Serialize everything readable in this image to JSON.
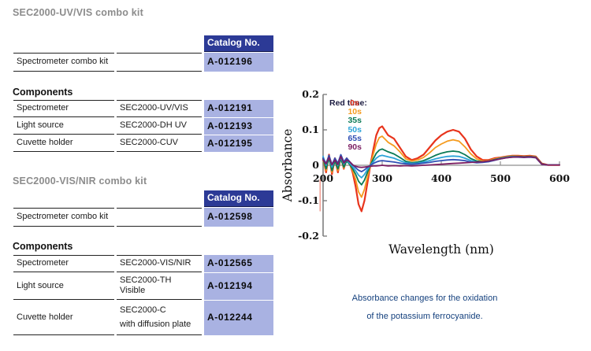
{
  "kits": [
    {
      "title": "SEC2000-UV/VIS combo kit",
      "catalog_header": "Catalog No.",
      "combo_row": {
        "label": "Spectrometer combo kit",
        "catalog": "A-012196"
      },
      "components_heading": "Components",
      "components": [
        {
          "label": "Spectrometer",
          "model": "SEC2000-UV/VIS",
          "catalog": "A-012191"
        },
        {
          "label": "Light source",
          "model": "SEC2000-DH UV",
          "catalog": "A-012193"
        },
        {
          "label": "Cuvette holder",
          "model": "SEC2000-CUV",
          "catalog": "A-012195"
        }
      ]
    },
    {
      "title": "SEC2000-VIS/NIR combo kit",
      "catalog_header": "Catalog No.",
      "combo_row": {
        "label": "Spectrometer combo kit",
        "catalog": "A-012598"
      },
      "components_heading": "Components",
      "components": [
        {
          "label": "Spectrometer",
          "model": "SEC2000-VIS/NIR",
          "catalog": "A-012565"
        },
        {
          "label": "Light source",
          "model": "SEC2000-TH Visible",
          "catalog": "A-012194"
        },
        {
          "label": "Cuvette holder",
          "model": "SEC2000-C",
          "model_line2": "with diffusion plate",
          "catalog": "A-012244"
        }
      ]
    }
  ],
  "caption": {
    "line1": "Absorbance changes for the oxidation",
    "line2": "of the potassium ferrocyanide."
  },
  "colors": {
    "catalog_header_bg": "#2c3a96",
    "catalog_header_text": "#ffffff",
    "catalog_cell_bg": "#a9b2e2",
    "kit_title_text": "#8c8c8c",
    "caption_text": "#15417e",
    "axis_gray": "#777777",
    "zero_line_gray": "#8f8f8f"
  },
  "chart_data": {
    "type": "line",
    "xlabel": "Wavelength (nm)",
    "ylabel": "Absorbance",
    "xlim": [
      200,
      600
    ],
    "ylim": [
      -0.2,
      0.2
    ],
    "xticks": [
      200,
      300,
      400,
      500,
      600
    ],
    "yticks": [
      -0.2,
      -0.1,
      0,
      0.1,
      0.2
    ],
    "grid": false,
    "legend_title": "Red time:",
    "legend_position": "top-left-inside",
    "stray_mark": {
      "wavelength": 195,
      "from": -0.04,
      "to": -0.13,
      "color": "#f2978b"
    },
    "x": [
      200,
      205,
      210,
      215,
      220,
      225,
      230,
      235,
      240,
      245,
      250,
      255,
      260,
      265,
      270,
      275,
      280,
      285,
      290,
      295,
      300,
      310,
      320,
      330,
      340,
      350,
      360,
      370,
      380,
      390,
      400,
      410,
      420,
      430,
      440,
      450,
      460,
      470,
      480,
      490,
      500,
      510,
      520,
      530,
      540,
      550,
      560,
      570,
      580,
      590,
      600
    ],
    "series": [
      {
        "name": "0s",
        "color": "#e8341c",
        "width": 2.2,
        "values": [
          0.02,
          -0.02,
          0.03,
          -0.025,
          0.02,
          -0.02,
          0.025,
          -0.01,
          0.02,
          0.005,
          -0.02,
          -0.06,
          -0.11,
          -0.13,
          -0.1,
          -0.05,
          0,
          0.045,
          0.085,
          0.105,
          0.11,
          0.085,
          0.075,
          0.05,
          0.025,
          0.015,
          0.02,
          0.03,
          0.05,
          0.07,
          0.085,
          0.095,
          0.1,
          0.095,
          0.075,
          0.045,
          0.025,
          0.015,
          0.015,
          0.02,
          0.022,
          0.025,
          0.027,
          0.027,
          0.026,
          0.027,
          0.025,
          0.005,
          0.001,
          0.001,
          0.001
        ]
      },
      {
        "name": "10s",
        "color": "#f59b1e",
        "width": 1.8,
        "values": [
          0.015,
          -0.015,
          0.025,
          -0.02,
          0.015,
          -0.015,
          0.02,
          -0.008,
          0.015,
          0.003,
          -0.015,
          -0.04,
          -0.075,
          -0.09,
          -0.068,
          -0.033,
          0,
          0.032,
          0.06,
          0.078,
          0.082,
          0.065,
          0.055,
          0.038,
          0.018,
          0.012,
          0.015,
          0.022,
          0.035,
          0.05,
          0.06,
          0.068,
          0.072,
          0.068,
          0.052,
          0.032,
          0.018,
          0.012,
          0.013,
          0.018,
          0.021,
          0.024,
          0.026,
          0.026,
          0.025,
          0.026,
          0.024,
          0.004,
          0.001,
          0.001,
          0.001
        ]
      },
      {
        "name": "35s",
        "color": "#0a7a55",
        "width": 1.8,
        "values": [
          0.018,
          -0.01,
          0.02,
          -0.015,
          0.012,
          -0.01,
          0.018,
          -0.005,
          0.012,
          0.002,
          -0.01,
          -0.025,
          -0.045,
          -0.055,
          -0.042,
          -0.02,
          0,
          0.018,
          0.034,
          0.043,
          0.046,
          0.038,
          0.032,
          0.022,
          0.011,
          0.007,
          0.009,
          0.013,
          0.02,
          0.028,
          0.034,
          0.038,
          0.04,
          0.038,
          0.03,
          0.019,
          0.012,
          0.01,
          0.012,
          0.016,
          0.02,
          0.023,
          0.025,
          0.025,
          0.024,
          0.025,
          0.023,
          0.004,
          0.001,
          0.001,
          0.001
        ]
      },
      {
        "name": "50s",
        "color": "#2da4d8",
        "width": 1.8,
        "values": [
          0.025,
          0,
          0.025,
          -0.005,
          0.018,
          0,
          0.022,
          0.004,
          0.015,
          0.005,
          -0.004,
          -0.015,
          -0.028,
          -0.035,
          -0.026,
          -0.012,
          0,
          0.01,
          0.02,
          0.026,
          0.028,
          0.024,
          0.02,
          0.013,
          0.007,
          0.005,
          0.006,
          0.009,
          0.013,
          0.018,
          0.022,
          0.025,
          0.026,
          0.025,
          0.02,
          0.013,
          0.009,
          0.009,
          0.011,
          0.015,
          0.019,
          0.022,
          0.024,
          0.024,
          0.023,
          0.024,
          0.022,
          0.003,
          0.001,
          0.001,
          0.001
        ]
      },
      {
        "name": "65s",
        "color": "#3050b4",
        "width": 1.8,
        "values": [
          0.02,
          0.005,
          0.028,
          0.002,
          0.02,
          0.006,
          0.03,
          0.01,
          0.02,
          0.01,
          0.002,
          -0.007,
          -0.014,
          -0.018,
          -0.013,
          -0.006,
          0,
          0.005,
          0.009,
          0.012,
          0.013,
          0.011,
          0.009,
          0.006,
          0.004,
          0.003,
          0.004,
          0.006,
          0.008,
          0.011,
          0.013,
          0.015,
          0.016,
          0.015,
          0.013,
          0.009,
          0.007,
          0.008,
          0.01,
          0.014,
          0.018,
          0.021,
          0.023,
          0.023,
          0.022,
          0.023,
          0.021,
          0.003,
          0.001,
          0.001,
          0.001
        ]
      },
      {
        "name": "90s",
        "color": "#7c1f63",
        "width": 1.8,
        "values": [
          0.015,
          0.004,
          0.022,
          0.001,
          0.015,
          0.002,
          0.025,
          0.006,
          0.015,
          0.01,
          0.001,
          -0.003,
          -0.005,
          -0.006,
          -0.005,
          -0.004,
          -0.003,
          -0.002,
          -0.002,
          -0.001,
          0,
          -0.002,
          -0.001,
          -0.002,
          -0.001,
          -0.002,
          -0.001,
          0,
          0.001,
          0.002,
          0.003,
          0.004,
          0.005,
          0.006,
          0.007,
          0.008,
          0.009,
          0.01,
          0.012,
          0.015,
          0.018,
          0.021,
          0.023,
          0.024,
          0.023,
          0.024,
          0.022,
          0.003,
          0.001,
          0.001,
          0.001
        ]
      }
    ]
  }
}
